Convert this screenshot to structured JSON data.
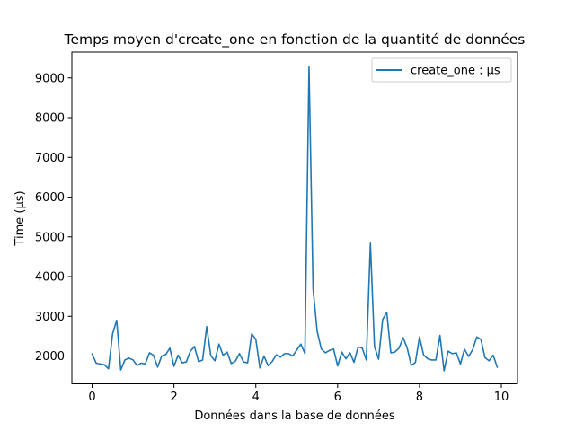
{
  "chart_data": {
    "type": "line",
    "title": "Temps moyen d'create_one en fonction de la quantité de données",
    "xlabel": "Données dans la base de données",
    "ylabel": "Time (µs)",
    "xlim": [
      -0.495,
      10.395
    ],
    "ylim": [
      1300,
      9650
    ],
    "xticks": [
      0,
      2,
      4,
      6,
      8,
      10
    ],
    "yticks": [
      2000,
      3000,
      4000,
      5000,
      6000,
      7000,
      8000,
      9000
    ],
    "grid": false,
    "legend_position": "top-right",
    "series": [
      {
        "name": "create_one : µs",
        "color": "#1f77b4",
        "x": [
          0.0,
          0.1,
          0.2,
          0.3,
          0.4,
          0.5,
          0.6,
          0.7,
          0.8,
          0.9,
          1.0,
          1.1,
          1.2,
          1.3,
          1.4,
          1.5,
          1.6,
          1.7,
          1.8,
          1.9,
          2.0,
          2.1,
          2.2,
          2.3,
          2.4,
          2.5,
          2.6,
          2.7,
          2.8,
          2.9,
          3.0,
          3.1,
          3.2,
          3.3,
          3.4,
          3.5,
          3.6,
          3.7,
          3.8,
          3.9,
          4.0,
          4.1,
          4.2,
          4.3,
          4.4,
          4.5,
          4.6,
          4.7,
          4.8,
          4.9,
          5.0,
          5.1,
          5.2,
          5.3,
          5.4,
          5.5,
          5.6,
          5.7,
          5.8,
          5.9,
          6.0,
          6.1,
          6.2,
          6.3,
          6.4,
          6.5,
          6.6,
          6.7,
          6.8,
          6.9,
          7.0,
          7.1,
          7.2,
          7.3,
          7.4,
          7.5,
          7.6,
          7.7,
          7.8,
          7.9,
          8.0,
          8.1,
          8.2,
          8.3,
          8.4,
          8.5,
          8.6,
          8.7,
          8.8,
          8.9,
          9.0,
          9.1,
          9.2,
          9.3,
          9.4,
          9.5,
          9.6,
          9.7,
          9.8,
          9.9
        ],
        "values": [
          2050,
          1820,
          1800,
          1780,
          1680,
          2560,
          2900,
          1650,
          1900,
          1950,
          1900,
          1760,
          1820,
          1800,
          2080,
          2020,
          1720,
          2000,
          2040,
          2200,
          1740,
          2020,
          1830,
          1850,
          2120,
          2240,
          1860,
          1900,
          2740,
          2010,
          1880,
          2300,
          2020,
          2100,
          1810,
          1870,
          2060,
          1850,
          1830,
          2560,
          2420,
          1700,
          2000,
          1760,
          1860,
          2030,
          1970,
          2060,
          2060,
          2000,
          2150,
          2300,
          2060,
          9280,
          3680,
          2620,
          2180,
          2080,
          2140,
          2180,
          1750,
          2100,
          1930,
          2080,
          1840,
          2230,
          2200,
          1900,
          4840,
          2240,
          1920,
          2920,
          3100,
          2080,
          2100,
          2200,
          2460,
          2200,
          1760,
          1840,
          2480,
          2030,
          1930,
          1900,
          1900,
          2520,
          1630,
          2120,
          2060,
          2080,
          1800,
          2170,
          1990,
          2160,
          2480,
          2420,
          1960,
          1880,
          2020,
          1720
        ]
      }
    ]
  }
}
